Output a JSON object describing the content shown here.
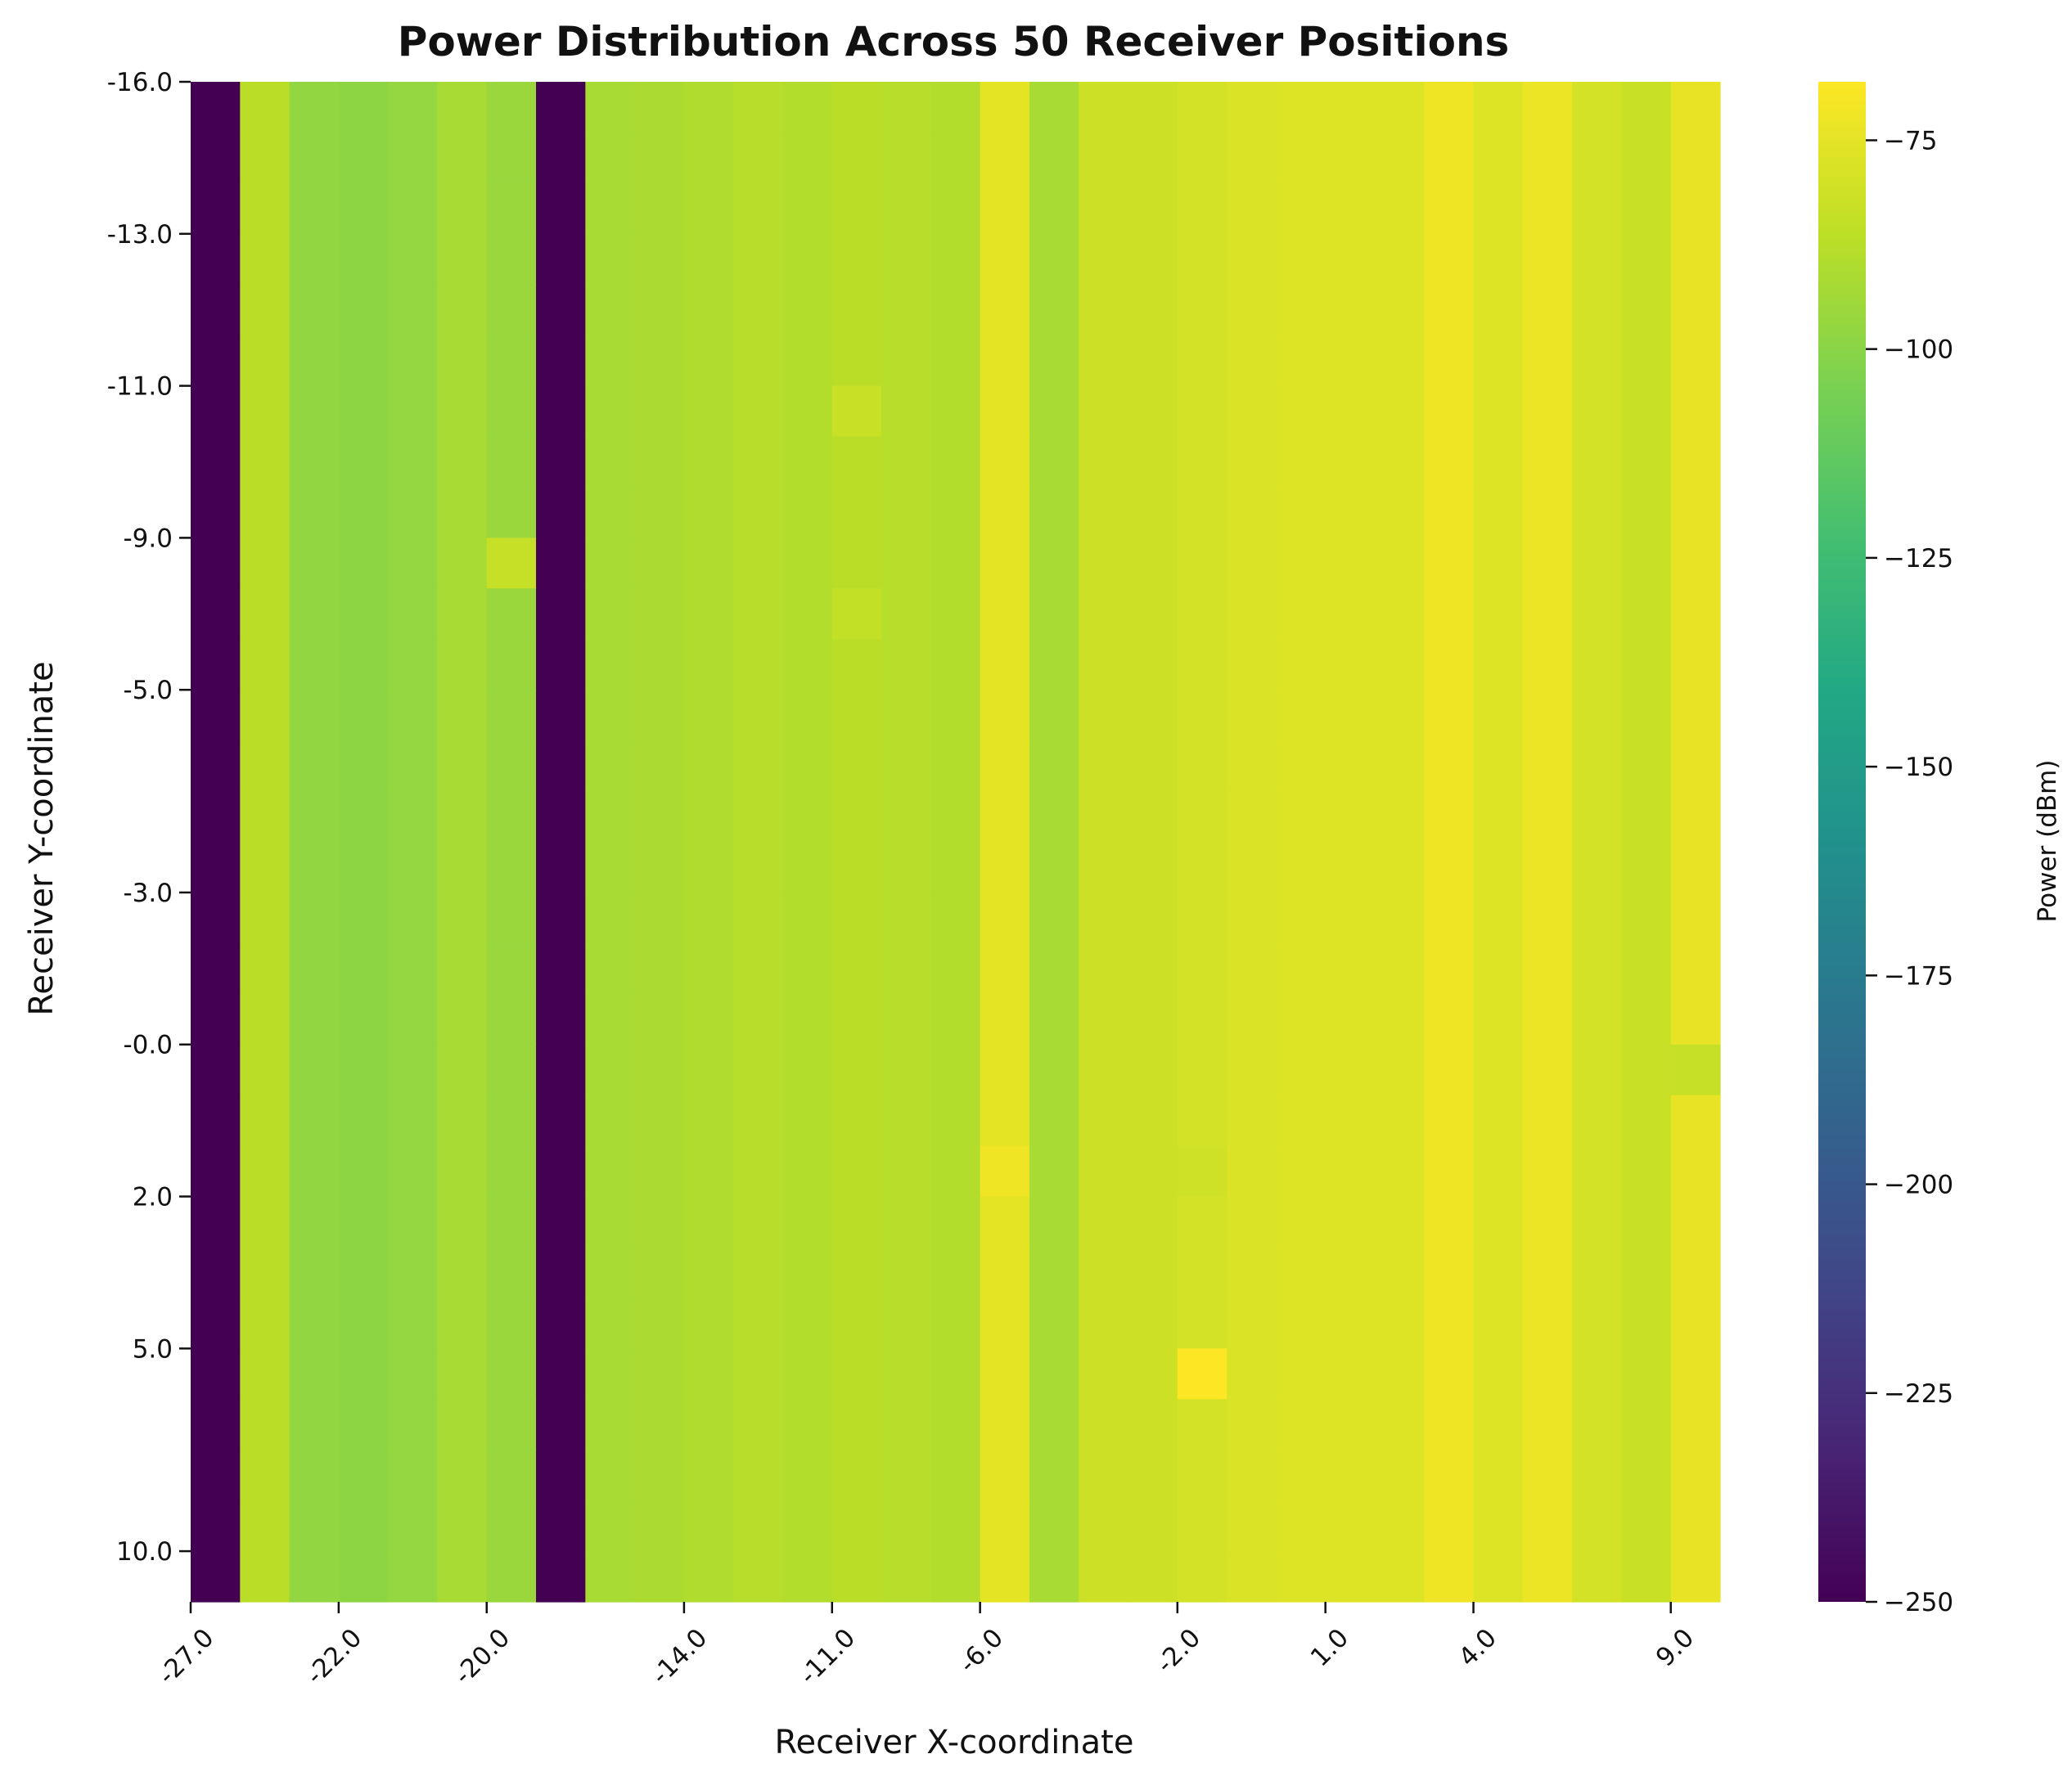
{
  "chart_data": {
    "type": "heatmap",
    "title": "Power Distribution Across 50 Receiver Positions",
    "xlabel": "Receiver X-coordinate",
    "ylabel": "Receiver Y-coordinate",
    "colorbar_label": "Power (dBm)",
    "colormap": "viridis",
    "value_range": [
      -250,
      -68
    ],
    "colorbar_ticks": [
      "-75",
      "-100",
      "-125",
      "-150",
      "-175",
      "-200",
      "-225",
      "-250"
    ],
    "x_tick_labels": [
      "-27.0",
      "-22.0",
      "-20.0",
      "-14.0",
      "-11.0",
      "-6.0",
      "-2.0",
      "1.0",
      "4.0",
      "9.0"
    ],
    "y_tick_labels": [
      "-16.0",
      "-13.0",
      "-11.0",
      "-9.0",
      "-5.0",
      "-3.0",
      "-0.0",
      "2.0",
      "5.0",
      "10.0"
    ],
    "n_cols": 31,
    "n_rows": 30,
    "column_values": [
      -250,
      -87,
      -98,
      -99,
      -97,
      -92,
      -96,
      -250,
      -92,
      -91,
      -90,
      -88,
      -89,
      -87,
      -88,
      -89,
      -75,
      -92,
      -82,
      -82,
      -80,
      -78,
      -77,
      -77,
      -77,
      -72,
      -77,
      -73,
      -80,
      -83,
      -74
    ],
    "cell_overrides": [
      {
        "row": 9,
        "col": 6,
        "value": -84
      },
      {
        "row": 6,
        "col": 13,
        "value": -83
      },
      {
        "row": 10,
        "col": 13,
        "value": -85
      },
      {
        "row": 19,
        "col": 30,
        "value": -84
      },
      {
        "row": 21,
        "col": 16,
        "value": -72
      },
      {
        "row": 21,
        "col": 20,
        "value": -81
      },
      {
        "row": 25,
        "col": 20,
        "value": -68
      }
    ]
  }
}
